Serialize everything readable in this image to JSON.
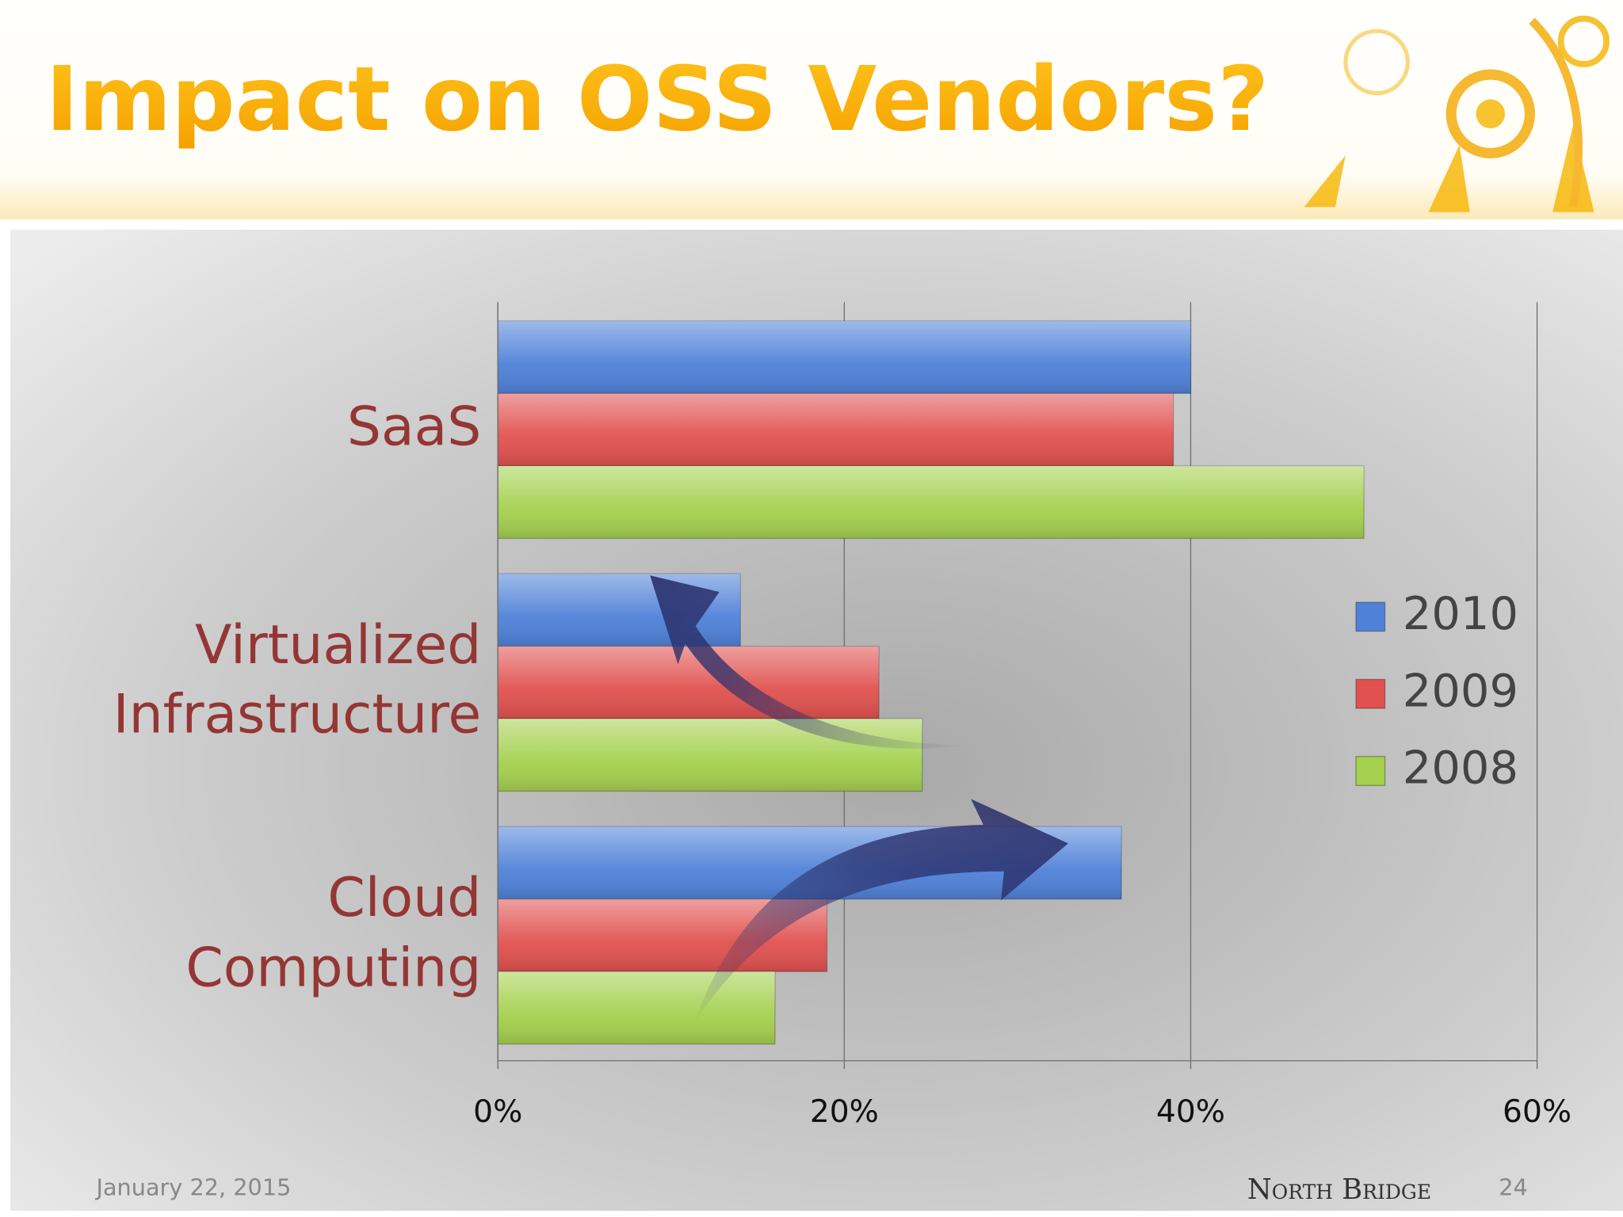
{
  "header": {
    "title": "Impact on OSS Vendors?"
  },
  "chart_data": {
    "type": "bar",
    "orientation": "horizontal",
    "categories": [
      "SaaS",
      "Virtualized Infrastructure",
      "Cloud Computing"
    ],
    "series": [
      {
        "name": "2010",
        "color": "#4f81d8",
        "values": [
          40,
          14,
          36
        ]
      },
      {
        "name": "2009",
        "color": "#e0514f",
        "values": [
          39,
          22,
          19
        ]
      },
      {
        "name": "2008",
        "color": "#a4d04e",
        "values": [
          50,
          24.5,
          16
        ]
      }
    ],
    "xlim": [
      0,
      60
    ],
    "xticks": [
      {
        "value": 0,
        "label": "0%"
      },
      {
        "value": 20,
        "label": "20%"
      },
      {
        "value": 40,
        "label": "40%"
      },
      {
        "value": 60,
        "label": "60%"
      }
    ],
    "grid": true,
    "legend": "right"
  },
  "footer": {
    "date": "January 22, 2015",
    "brand": "North Bridge",
    "page": 24
  }
}
